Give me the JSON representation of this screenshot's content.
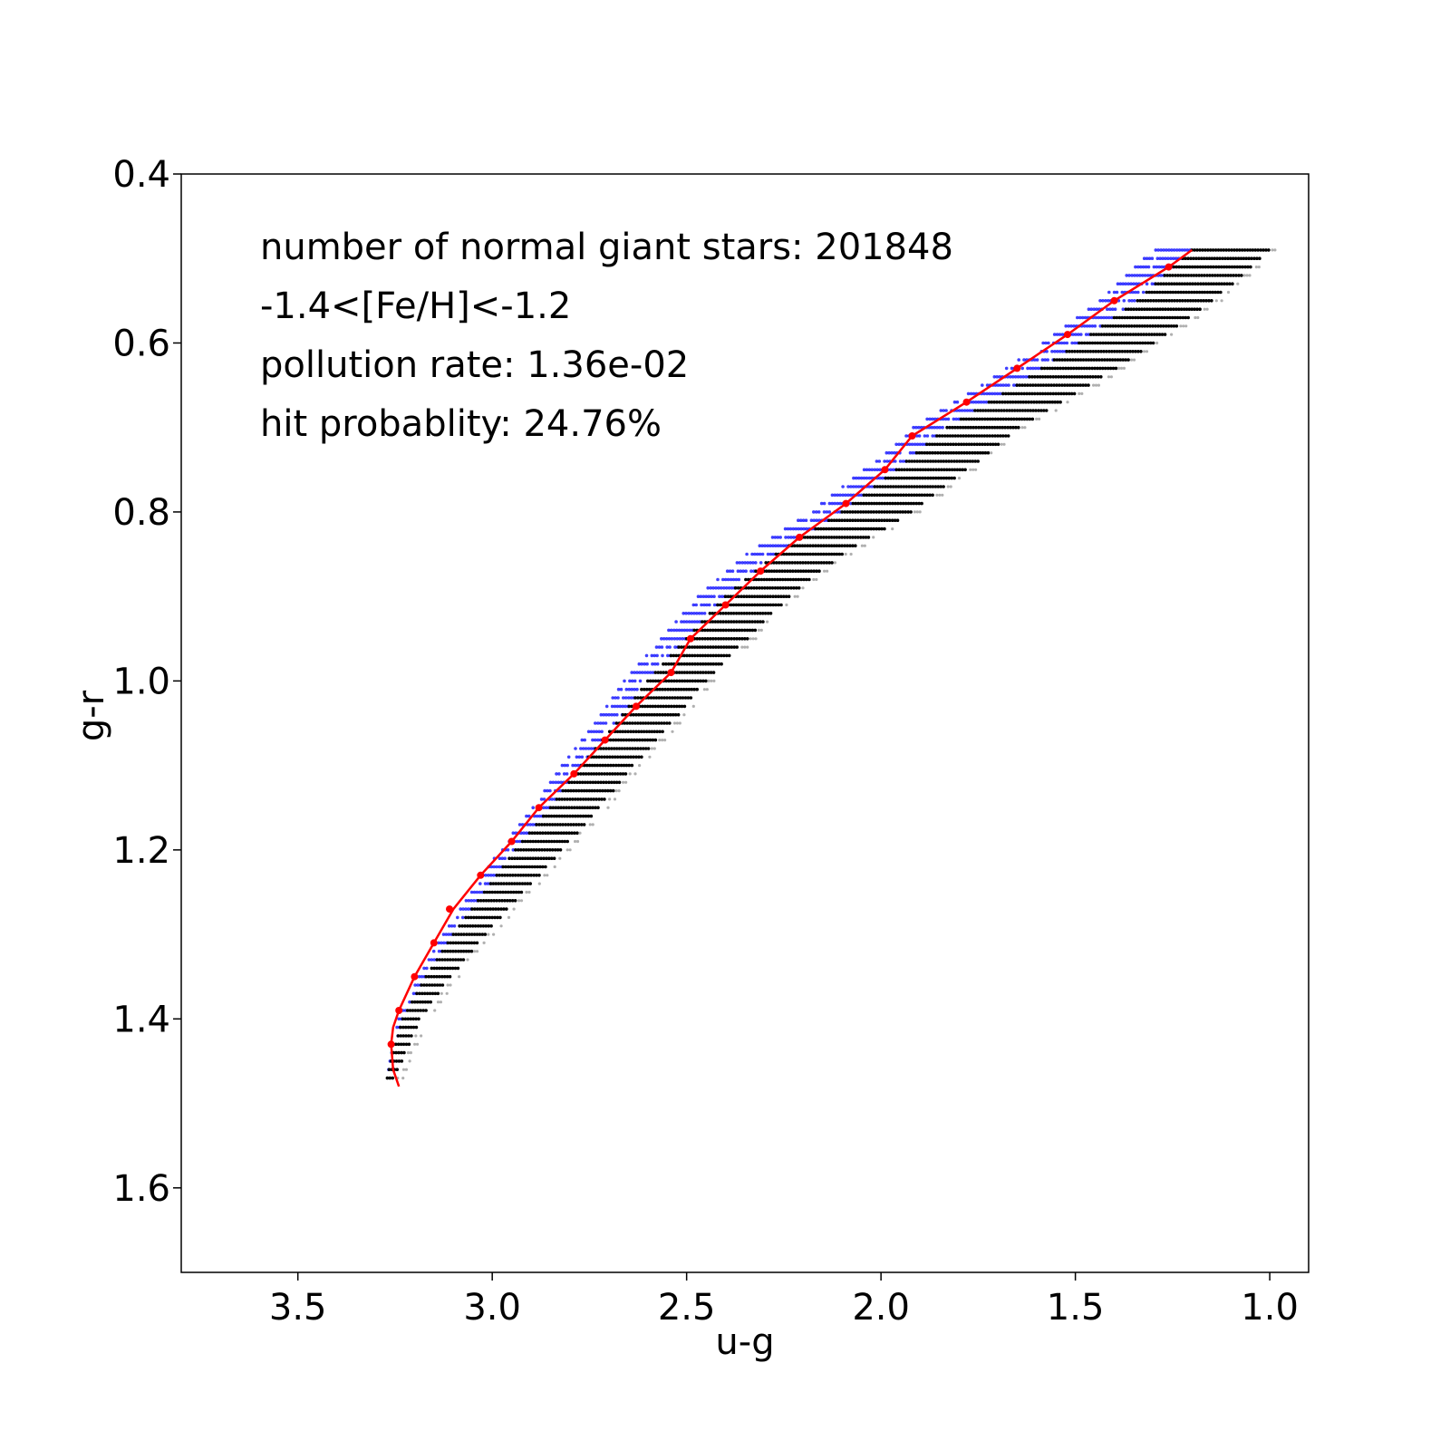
{
  "chart_data": {
    "type": "scatter",
    "title": "",
    "xlabel": "u-g",
    "ylabel": "g-r",
    "xlim": [
      3.8,
      0.9
    ],
    "ylim": [
      1.7,
      0.4
    ],
    "x_inverted": true,
    "y_inverted": true,
    "xticks": [
      3.5,
      3.0,
      2.5,
      2.0,
      1.5,
      1.0
    ],
    "xtick_labels": [
      "3.5",
      "3.0",
      "2.5",
      "2.0",
      "1.5",
      "1.0"
    ],
    "yticks": [
      0.4,
      0.6,
      0.8,
      1.0,
      1.2,
      1.4,
      1.6
    ],
    "ytick_labels": [
      "0.4",
      "0.6",
      "0.8",
      "1.0",
      "1.2",
      "1.4",
      "1.6"
    ],
    "grid": false,
    "annotations": [
      "number of normal giant stars: 201848",
      "-1.4<[Fe/H]<-1.2",
      "pollution rate: 1.36e-02",
      "hit probablity: 24.76%"
    ],
    "colors": {
      "fit_line": "#ff0000",
      "fit_points": "#ff0000",
      "giants": "#000000",
      "polluting": "#0000ff",
      "sparse": "#b0b0b0"
    },
    "fit_points": {
      "x": [
        3.26,
        3.24,
        3.2,
        3.15,
        3.11,
        3.03,
        2.95,
        2.88,
        2.79,
        2.71,
        2.63,
        2.54,
        2.49,
        2.4,
        2.31,
        2.21,
        2.09,
        1.99,
        1.92,
        1.78,
        1.65,
        1.52,
        1.4,
        1.26
      ],
      "y": [
        1.43,
        1.39,
        1.35,
        1.31,
        1.27,
        1.23,
        1.19,
        1.15,
        1.11,
        1.07,
        1.03,
        0.99,
        0.95,
        0.91,
        0.87,
        0.83,
        0.79,
        0.75,
        0.71,
        0.67,
        0.63,
        0.59,
        0.55,
        0.51
      ]
    },
    "fit_line": {
      "x": [
        3.24,
        3.255,
        3.26,
        3.255,
        3.24,
        3.2,
        3.15,
        3.1,
        3.03,
        2.95,
        2.88,
        2.79,
        2.71,
        2.63,
        2.54,
        2.49,
        2.4,
        2.31,
        2.21,
        2.09,
        1.99,
        1.92,
        1.78,
        1.65,
        1.52,
        1.4,
        1.26,
        1.2
      ],
      "y": [
        1.48,
        1.46,
        1.43,
        1.41,
        1.39,
        1.35,
        1.31,
        1.27,
        1.23,
        1.19,
        1.15,
        1.11,
        1.07,
        1.03,
        0.99,
        0.95,
        0.91,
        0.87,
        0.83,
        0.79,
        0.75,
        0.71,
        0.67,
        0.63,
        0.59,
        0.55,
        0.51,
        0.49
      ]
    },
    "scatter_density": {
      "ridge_x_at_y": {
        "y": [
          0.49,
          0.55,
          0.6,
          0.65,
          0.7,
          0.75,
          0.8,
          0.85,
          0.9,
          0.95,
          1.0,
          1.05,
          1.1,
          1.15,
          1.2,
          1.25,
          1.3,
          1.35,
          1.4,
          1.45,
          1.47
        ],
        "x_ridge": [
          1.2,
          1.34,
          1.49,
          1.65,
          1.83,
          1.96,
          2.1,
          2.27,
          2.4,
          2.5,
          2.6,
          2.68,
          2.77,
          2.85,
          2.94,
          3.02,
          3.1,
          3.17,
          3.23,
          3.26,
          3.27
        ]
      },
      "black_width": {
        "y": [
          0.49,
          0.8,
          1.2,
          1.47
        ],
        "x": [
          0.2,
          0.18,
          0.12,
          0.02
        ]
      },
      "blue_extent_left": {
        "y": [
          0.49,
          0.8,
          1.2,
          1.47
        ],
        "x": [
          0.1,
          0.08,
          0.04,
          0.0
        ]
      }
    }
  }
}
